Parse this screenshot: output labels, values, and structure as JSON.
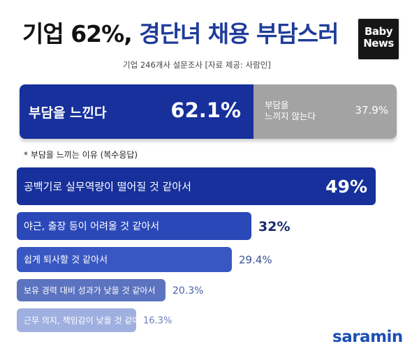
{
  "title": {
    "pre": "기업 62%, ",
    "highlight": "경단녀 채용 부담스러"
  },
  "logo": {
    "line1": "Baby",
    "line2": "News"
  },
  "subtitle": "기업 246개사 설문조사 [자료 제공: 사람인]",
  "split": {
    "left": {
      "label": "부담을 느낀다",
      "value_text": "62.1%",
      "value": 62.1,
      "color": "#17309b"
    },
    "right": {
      "label": "부담을\n느끼지 않는다",
      "value_text": "37.9%",
      "value": 37.9,
      "color": "#a3a3a3"
    }
  },
  "note": "* 부담을 느끼는 이유 (복수응답)",
  "chart_data": {
    "type": "bar",
    "orientation": "horizontal",
    "categories": [
      "공백기로 실무역량이 떨어질 것 같아서",
      "야근, 출장 등이 어려울 것 같아서",
      "쉽게 퇴사할 것 같아서",
      "보유 경력 대비 성과가 낮을 것 같아서",
      "근무 의지, 책임감이 낮을 것 같아서"
    ],
    "values": [
      49,
      32,
      29.4,
      20.3,
      16.3
    ],
    "value_labels": [
      "49%",
      "32%",
      "29.4%",
      "20.3%",
      "16.3%"
    ],
    "colors": [
      "#17309b",
      "#2b48b8",
      "#3957c2",
      "#5c73c0",
      "#9fb0e0"
    ],
    "label_colors": [
      "#ffffff",
      "#1a2a6c",
      "#3a4f9c",
      "#4b5fa6",
      "#6a7cb8"
    ]
  },
  "brand": "saramin"
}
